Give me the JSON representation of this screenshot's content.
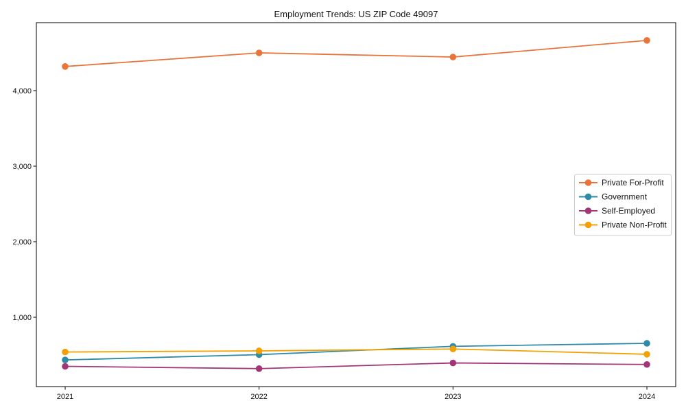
{
  "chart_data": {
    "type": "line",
    "title": "Employment Trends: US ZIP Code 49097",
    "xlabel": "",
    "ylabel": "",
    "x": [
      2021,
      2022,
      2023,
      2024
    ],
    "x_tick_labels": [
      "2021",
      "2022",
      "2023",
      "2024"
    ],
    "y_ticks": [
      1000,
      2000,
      3000,
      4000
    ],
    "y_tick_labels": [
      "1,000",
      "2,000",
      "3,000",
      "4,000"
    ],
    "ylim": [
      82,
      4900
    ],
    "grid": false,
    "legend_position": "center-right",
    "series": [
      {
        "name": "Private For-Profit",
        "color": "#E8743B",
        "values": [
          4320,
          4500,
          4445,
          4665
        ]
      },
      {
        "name": "Government",
        "color": "#2E8BA8",
        "values": [
          435,
          505,
          615,
          655
        ]
      },
      {
        "name": "Self-Employed",
        "color": "#A23577",
        "values": [
          350,
          320,
          395,
          375
        ]
      },
      {
        "name": "Private Non-Profit",
        "color": "#F2A104",
        "values": [
          540,
          555,
          580,
          510
        ]
      }
    ]
  }
}
